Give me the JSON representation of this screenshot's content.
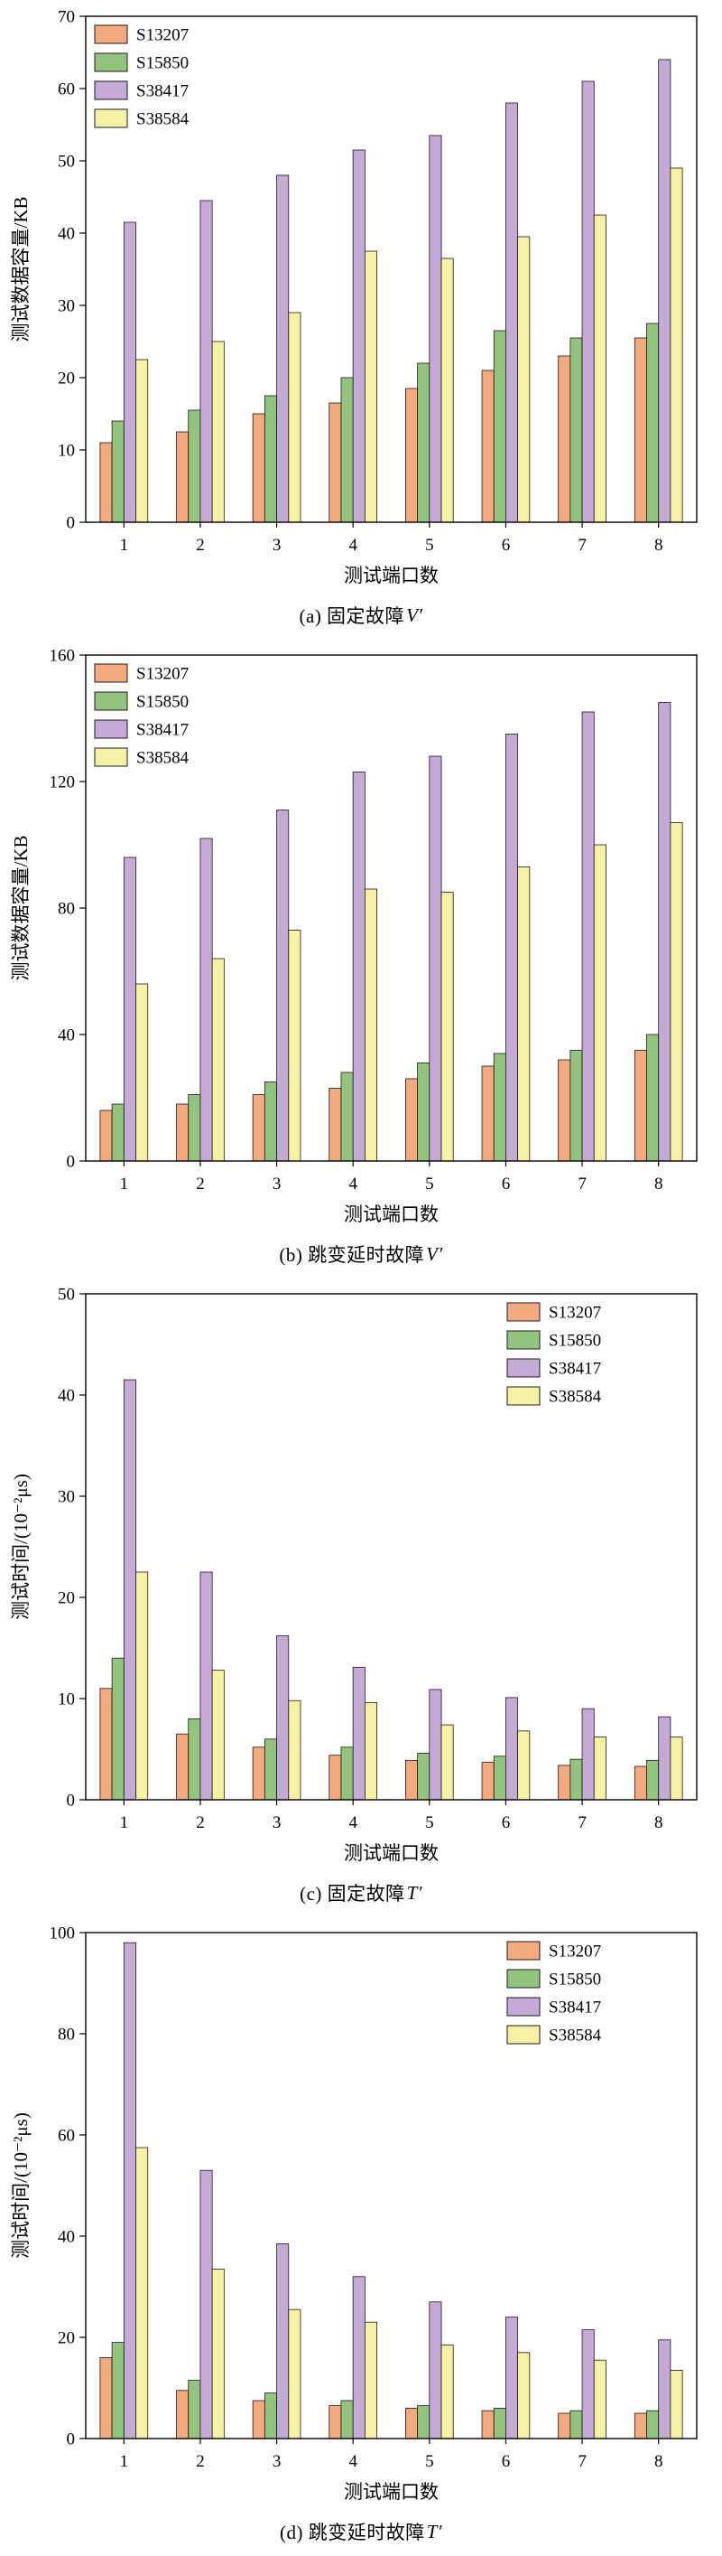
{
  "figure": {
    "background": "#ffffff",
    "axis_color": "#000000",
    "bar_outline": "#1a1a1a"
  },
  "series_colors": {
    "S13207": "#f4a97e",
    "S15850": "#93c47d",
    "S38417": "#c4abd6",
    "S38584": "#f6f2a3"
  },
  "chart_data": [
    {
      "type": "bar",
      "caption": {
        "prefix": "(a) 固定故障",
        "math": "V′"
      },
      "xlabel": "测试端口数",
      "ylabel": "测试数据容量/KB",
      "ylim": [
        0,
        70
      ],
      "yticks": [
        0,
        10,
        20,
        30,
        40,
        50,
        60,
        70
      ],
      "categories": [
        "1",
        "2",
        "3",
        "4",
        "5",
        "6",
        "7",
        "8"
      ],
      "legend_position": "left",
      "grid": false,
      "series": [
        {
          "name": "S13207",
          "color": "#f4a97e",
          "values": [
            11,
            12.5,
            15,
            16.5,
            18.5,
            21,
            23,
            25.5
          ]
        },
        {
          "name": "S15850",
          "color": "#93c47d",
          "values": [
            14,
            15.5,
            17.5,
            20,
            22,
            26.5,
            25.5,
            27.5
          ]
        },
        {
          "name": "S38417",
          "color": "#c4abd6",
          "values": [
            41.5,
            44.5,
            48,
            51.5,
            53.5,
            58,
            61,
            64
          ]
        },
        {
          "name": "S38584",
          "color": "#f6f2a3",
          "values": [
            22.5,
            25,
            29,
            37.5,
            36.5,
            39.5,
            42.5,
            49
          ]
        }
      ]
    },
    {
      "type": "bar",
      "caption": {
        "prefix": "(b) 跳变延时故障",
        "math": "V′"
      },
      "xlabel": "测试端口数",
      "ylabel": "测试数据容量/KB",
      "ylim": [
        0,
        160
      ],
      "yticks": [
        0,
        40,
        80,
        120,
        160
      ],
      "categories": [
        "1",
        "2",
        "3",
        "4",
        "5",
        "6",
        "7",
        "8"
      ],
      "legend_position": "left",
      "grid": false,
      "series": [
        {
          "name": "S13207",
          "color": "#f4a97e",
          "values": [
            16,
            18,
            21,
            23,
            26,
            30,
            32,
            35
          ]
        },
        {
          "name": "S15850",
          "color": "#93c47d",
          "values": [
            18,
            21,
            25,
            28,
            31,
            34,
            35,
            40
          ]
        },
        {
          "name": "S38417",
          "color": "#c4abd6",
          "values": [
            96,
            102,
            111,
            123,
            128,
            135,
            142,
            145
          ]
        },
        {
          "name": "S38584",
          "color": "#f6f2a3",
          "values": [
            56,
            64,
            73,
            86,
            85,
            93,
            100,
            107
          ]
        }
      ]
    },
    {
      "type": "bar",
      "caption": {
        "prefix": "(c) 固定故障",
        "math": "T′"
      },
      "xlabel": "测试端口数",
      "ylabel": "测试时间/(10⁻²μs)",
      "ylim": [
        0,
        50
      ],
      "yticks": [
        0,
        10,
        20,
        30,
        40,
        50
      ],
      "categories": [
        "1",
        "2",
        "3",
        "4",
        "5",
        "6",
        "7",
        "8"
      ],
      "legend_position": "right",
      "grid": false,
      "series": [
        {
          "name": "S13207",
          "color": "#f4a97e",
          "values": [
            11,
            6.5,
            5.2,
            4.4,
            3.9,
            3.7,
            3.4,
            3.3
          ]
        },
        {
          "name": "S15850",
          "color": "#93c47d",
          "values": [
            14,
            8,
            6,
            5.2,
            4.6,
            4.3,
            4,
            3.9
          ]
        },
        {
          "name": "S38417",
          "color": "#c4abd6",
          "values": [
            41.5,
            22.5,
            16.2,
            13.1,
            10.9,
            10.1,
            9,
            8.2
          ]
        },
        {
          "name": "S38584",
          "color": "#f6f2a3",
          "values": [
            22.5,
            12.8,
            9.8,
            9.6,
            7.4,
            6.8,
            6.2,
            6.2
          ]
        }
      ]
    },
    {
      "type": "bar",
      "caption": {
        "prefix": "(d) 跳变延时故障",
        "math": "T′"
      },
      "xlabel": "测试端口数",
      "ylabel": "测试时间/(10⁻²μs)",
      "ylim": [
        0,
        100
      ],
      "yticks": [
        0,
        20,
        40,
        60,
        80,
        100
      ],
      "categories": [
        "1",
        "2",
        "3",
        "4",
        "5",
        "6",
        "7",
        "8"
      ],
      "legend_position": "right",
      "grid": false,
      "series": [
        {
          "name": "S13207",
          "color": "#f4a97e",
          "values": [
            16,
            9.5,
            7.5,
            6.5,
            6,
            5.5,
            5,
            5
          ]
        },
        {
          "name": "S15850",
          "color": "#93c47d",
          "values": [
            19,
            11.5,
            9,
            7.5,
            6.5,
            6,
            5.5,
            5.5
          ]
        },
        {
          "name": "S38417",
          "color": "#c4abd6",
          "values": [
            98,
            53,
            38.5,
            32,
            27,
            24,
            21.5,
            19.5
          ]
        },
        {
          "name": "S38584",
          "color": "#f6f2a3",
          "values": [
            57.5,
            33.5,
            25.5,
            23,
            18.5,
            17,
            15.5,
            13.5
          ]
        }
      ]
    }
  ]
}
